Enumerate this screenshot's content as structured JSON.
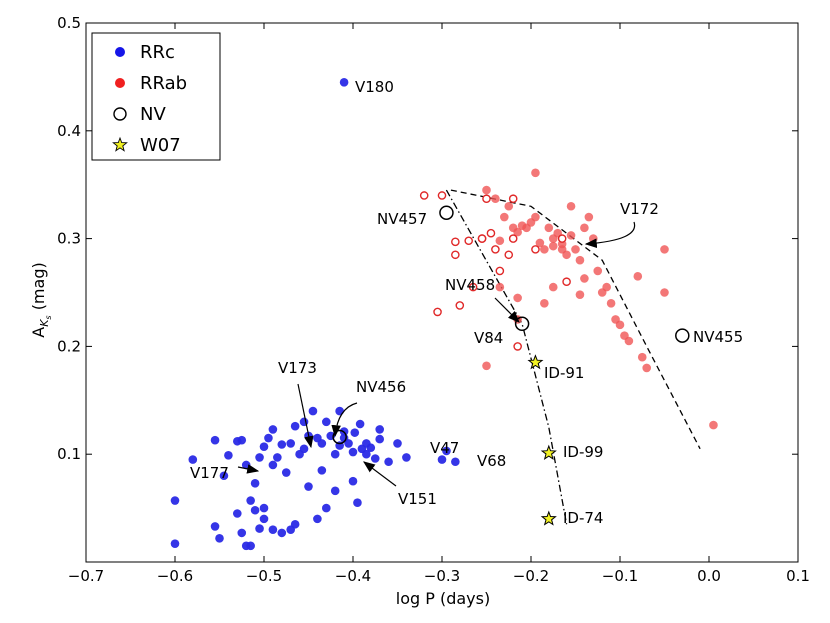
{
  "chart_data": {
    "type": "scatter",
    "xlabel": "log P (days)",
    "ylabel": "A",
    "ylabel_sub": "K",
    "ylabel_subsub": "s",
    "ylabel_unit": " (mag)",
    "xlim": [
      -0.7,
      0.1
    ],
    "ylim": [
      0.0,
      0.5
    ],
    "xticks": [
      -0.7,
      -0.6,
      -0.5,
      -0.4,
      -0.3,
      -0.2,
      -0.1,
      0.0,
      0.1
    ],
    "xtick_labels": [
      "−0.7",
      "−0.6",
      "−0.5",
      "−0.4",
      "−0.3",
      "−0.2",
      "−0.1",
      "0.0",
      "0.1"
    ],
    "yticks": [
      0.1,
      0.2,
      0.3,
      0.4,
      0.5
    ],
    "ytick_labels": [
      "0.1",
      "0.2",
      "0.3",
      "0.4",
      "0.5"
    ],
    "grid": false,
    "legend_position": "top-left",
    "legend": [
      {
        "label": "RRc",
        "marker": "filled-circle",
        "color": "#1515e8"
      },
      {
        "label": "RRab",
        "marker": "filled-circle",
        "color": "#f02020"
      },
      {
        "label": "NV",
        "marker": "open-circle",
        "color": "#000000"
      },
      {
        "label": "W07",
        "marker": "star",
        "color": "#f0f020"
      }
    ],
    "colors": {
      "rrc": "#2a2ae6",
      "rrab": "#f05555",
      "rrab_open": "#e02828",
      "star": "#f2f225"
    },
    "series": [
      {
        "name": "RRc",
        "color": "#2a2ae6",
        "points": [
          [
            -0.41,
            0.445
          ],
          [
            -0.6,
            0.057
          ],
          [
            -0.6,
            0.017
          ],
          [
            -0.58,
            0.095
          ],
          [
            -0.555,
            0.113
          ],
          [
            -0.555,
            0.033
          ],
          [
            -0.55,
            0.022
          ],
          [
            -0.545,
            0.08
          ],
          [
            -0.54,
            0.099
          ],
          [
            -0.53,
            0.112
          ],
          [
            -0.525,
            0.113
          ],
          [
            -0.53,
            0.045
          ],
          [
            -0.525,
            0.027
          ],
          [
            -0.52,
            0.015
          ],
          [
            -0.515,
            0.015
          ],
          [
            -0.51,
            0.048
          ],
          [
            -0.515,
            0.057
          ],
          [
            -0.52,
            0.09
          ],
          [
            -0.51,
            0.073
          ],
          [
            -0.505,
            0.097
          ],
          [
            -0.505,
            0.031
          ],
          [
            -0.5,
            0.04
          ],
          [
            -0.5,
            0.05
          ],
          [
            -0.49,
            0.03
          ],
          [
            -0.5,
            0.107
          ],
          [
            -0.49,
            0.09
          ],
          [
            -0.495,
            0.115
          ],
          [
            -0.49,
            0.123
          ],
          [
            -0.485,
            0.097
          ],
          [
            -0.48,
            0.027
          ],
          [
            -0.48,
            0.109
          ],
          [
            -0.475,
            0.083
          ],
          [
            -0.47,
            0.11
          ],
          [
            -0.47,
            0.03
          ],
          [
            -0.465,
            0.126
          ],
          [
            -0.465,
            0.035
          ],
          [
            -0.46,
            0.1
          ],
          [
            -0.455,
            0.13
          ],
          [
            -0.455,
            0.105
          ],
          [
            -0.45,
            0.117
          ],
          [
            -0.45,
            0.07
          ],
          [
            -0.445,
            0.14
          ],
          [
            -0.44,
            0.04
          ],
          [
            -0.44,
            0.115
          ],
          [
            -0.435,
            0.11
          ],
          [
            -0.435,
            0.085
          ],
          [
            -0.43,
            0.05
          ],
          [
            -0.43,
            0.13
          ],
          [
            -0.425,
            0.117
          ],
          [
            -0.42,
            0.1
          ],
          [
            -0.42,
            0.066
          ],
          [
            -0.415,
            0.14
          ],
          [
            -0.415,
            0.108
          ],
          [
            -0.41,
            0.121
          ],
          [
            -0.41,
            0.115
          ],
          [
            -0.405,
            0.11
          ],
          [
            -0.4,
            0.075
          ],
          [
            -0.4,
            0.102
          ],
          [
            -0.398,
            0.12
          ],
          [
            -0.395,
            0.055
          ],
          [
            -0.392,
            0.128
          ],
          [
            -0.39,
            0.105
          ],
          [
            -0.385,
            0.1
          ],
          [
            -0.385,
            0.11
          ],
          [
            -0.38,
            0.106
          ],
          [
            -0.375,
            0.096
          ],
          [
            -0.37,
            0.123
          ],
          [
            -0.37,
            0.114
          ],
          [
            -0.36,
            0.093
          ],
          [
            -0.35,
            0.11
          ],
          [
            -0.34,
            0.097
          ],
          [
            -0.3,
            0.095
          ],
          [
            -0.295,
            0.103
          ],
          [
            -0.285,
            0.093
          ]
        ]
      },
      {
        "name": "RRab",
        "color": "#f05555",
        "points": [
          [
            -0.195,
            0.361
          ],
          [
            -0.25,
            0.345
          ],
          [
            -0.25,
            0.182
          ],
          [
            -0.24,
            0.337
          ],
          [
            -0.23,
            0.32
          ],
          [
            -0.235,
            0.298
          ],
          [
            -0.225,
            0.33
          ],
          [
            -0.22,
            0.31
          ],
          [
            -0.215,
            0.306
          ],
          [
            -0.21,
            0.312
          ],
          [
            -0.205,
            0.31
          ],
          [
            -0.2,
            0.315
          ],
          [
            -0.195,
            0.32
          ],
          [
            -0.19,
            0.296
          ],
          [
            -0.185,
            0.29
          ],
          [
            -0.18,
            0.31
          ],
          [
            -0.175,
            0.3
          ],
          [
            -0.17,
            0.305
          ],
          [
            -0.165,
            0.29
          ],
          [
            -0.16,
            0.285
          ],
          [
            -0.155,
            0.303
          ],
          [
            -0.15,
            0.29
          ],
          [
            -0.145,
            0.28
          ],
          [
            -0.14,
            0.263
          ],
          [
            -0.135,
            0.32
          ],
          [
            -0.13,
            0.3
          ],
          [
            -0.125,
            0.27
          ],
          [
            -0.12,
            0.25
          ],
          [
            -0.115,
            0.255
          ],
          [
            -0.11,
            0.24
          ],
          [
            -0.105,
            0.225
          ],
          [
            -0.1,
            0.22
          ],
          [
            -0.095,
            0.21
          ],
          [
            -0.09,
            0.205
          ],
          [
            -0.08,
            0.265
          ],
          [
            -0.075,
            0.19
          ],
          [
            -0.07,
            0.18
          ],
          [
            -0.05,
            0.29
          ],
          [
            -0.05,
            0.25
          ],
          [
            0.005,
            0.127
          ],
          [
            -0.235,
            0.255
          ],
          [
            -0.175,
            0.255
          ],
          [
            -0.185,
            0.24
          ],
          [
            -0.215,
            0.245
          ],
          [
            -0.215,
            0.225
          ],
          [
            -0.14,
            0.31
          ],
          [
            -0.155,
            0.33
          ],
          [
            -0.145,
            0.248
          ],
          [
            -0.165,
            0.295
          ],
          [
            -0.175,
            0.293
          ]
        ]
      },
      {
        "name": "RRab-open",
        "color": "#e02828",
        "points": [
          [
            -0.32,
            0.34
          ],
          [
            -0.3,
            0.34
          ],
          [
            -0.305,
            0.232
          ],
          [
            -0.285,
            0.297
          ],
          [
            -0.285,
            0.285
          ],
          [
            -0.27,
            0.298
          ],
          [
            -0.265,
            0.255
          ],
          [
            -0.255,
            0.3
          ],
          [
            -0.255,
            0.3
          ],
          [
            -0.245,
            0.305
          ],
          [
            -0.24,
            0.29
          ],
          [
            -0.235,
            0.27
          ],
          [
            -0.225,
            0.285
          ],
          [
            -0.22,
            0.3
          ],
          [
            -0.28,
            0.238
          ],
          [
            -0.215,
            0.2
          ],
          [
            -0.195,
            0.29
          ],
          [
            -0.165,
            0.3
          ],
          [
            -0.16,
            0.26
          ],
          [
            -0.25,
            0.337
          ],
          [
            -0.22,
            0.337
          ]
        ]
      },
      {
        "name": "NV",
        "color": "#000000",
        "points": [
          [
            -0.295,
            0.324
          ],
          [
            -0.21,
            0.221
          ],
          [
            -0.03,
            0.21
          ],
          [
            -0.415,
            0.116
          ]
        ]
      },
      {
        "name": "W07",
        "color": "#f2f225",
        "points": [
          [
            -0.195,
            0.185
          ],
          [
            -0.18,
            0.101
          ],
          [
            -0.18,
            0.04
          ]
        ]
      }
    ],
    "fit_lines": [
      {
        "style": "dashed",
        "points": [
          [
            -0.29,
            0.345
          ],
          [
            -0.2,
            0.33
          ],
          [
            -0.12,
            0.28
          ],
          [
            -0.07,
            0.2
          ],
          [
            -0.01,
            0.105
          ]
        ]
      },
      {
        "style": "dashdot",
        "points": [
          [
            -0.295,
            0.345
          ],
          [
            -0.21,
            0.221
          ],
          [
            -0.18,
            0.125
          ],
          [
            -0.16,
            0.035
          ]
        ]
      }
    ],
    "annotations": [
      {
        "text": "V180",
        "at": [
          -0.41,
          0.445
        ]
      },
      {
        "text": "V172",
        "at": [
          -0.13,
          0.295
        ]
      },
      {
        "text": "NV457",
        "at": [
          -0.295,
          0.324
        ]
      },
      {
        "text": "NV458",
        "at": [
          -0.21,
          0.221
        ]
      },
      {
        "text": "V84",
        "at": [
          -0.21,
          0.221
        ]
      },
      {
        "text": "NV455",
        "at": [
          -0.03,
          0.21
        ]
      },
      {
        "text": "ID-91",
        "at": [
          -0.195,
          0.185
        ]
      },
      {
        "text": "ID-99",
        "at": [
          -0.18,
          0.101
        ]
      },
      {
        "text": "ID-74",
        "at": [
          -0.18,
          0.04
        ]
      },
      {
        "text": "V173",
        "at": [
          -0.445,
          0.105
        ]
      },
      {
        "text": "NV456",
        "at": [
          -0.415,
          0.116
        ]
      },
      {
        "text": "V47",
        "at": [
          -0.295,
          0.103
        ]
      },
      {
        "text": "V68",
        "at": [
          -0.285,
          0.093
        ]
      },
      {
        "text": "V177",
        "at": [
          -0.505,
          0.085
        ]
      },
      {
        "text": "V151",
        "at": [
          -0.385,
          0.093
        ]
      }
    ]
  }
}
